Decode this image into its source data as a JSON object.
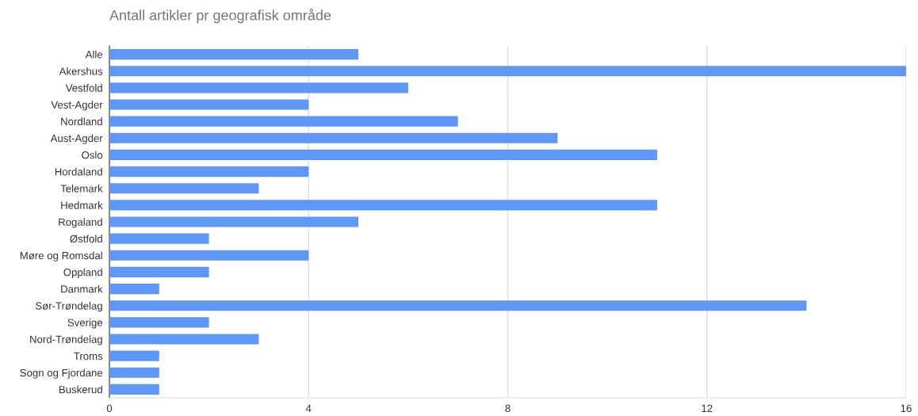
{
  "chart_data": {
    "type": "bar",
    "orientation": "horizontal",
    "title": "Antall artikler pr geografisk område",
    "categories": [
      "Alle",
      "Akershus",
      "Vestfold",
      "Vest-Agder",
      "Nordland",
      "Aust-Agder",
      "Oslo",
      "Hordaland",
      "Telemark",
      "Hedmark",
      "Rogaland",
      "Østfold",
      "Møre og Romsdal",
      "Oppland",
      "Danmark",
      "Sør-Trøndelag",
      "Sverige",
      "Nord-Trøndelag",
      "Troms",
      "Sogn og Fjordane",
      "Buskerud"
    ],
    "values": [
      5,
      16,
      6,
      4,
      7,
      9,
      11,
      4,
      3,
      11,
      5,
      2,
      4,
      2,
      1,
      14,
      2,
      3,
      1,
      1,
      1
    ],
    "color": "#5e97f6",
    "xlim": [
      0,
      16
    ],
    "xticks": [
      0,
      4,
      8,
      12,
      16
    ],
    "grid": "x"
  }
}
